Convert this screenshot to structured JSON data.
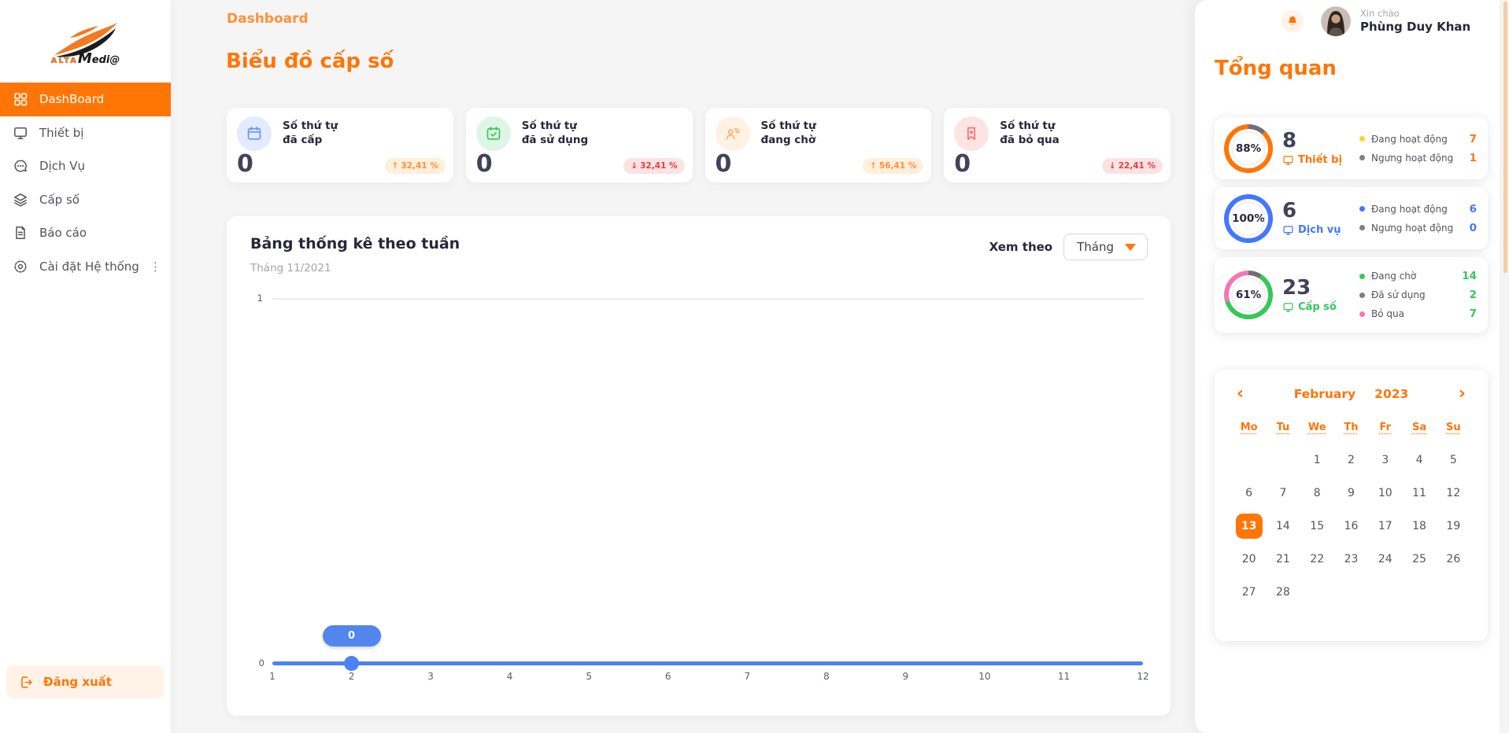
{
  "colors": {
    "primary_orange": "#FF7506",
    "breadcrumb_orange": "#FF9138",
    "accent_blue": "#4277FF",
    "accent_green": "#35C75A",
    "accent_pink": "#F178B6",
    "legend_yellow": "#FFD130",
    "legend_gray": "#7E7D88",
    "chart_line_blue": "#4B82F4",
    "badge_up": "#FF9138",
    "badge_down": "#E73F3F"
  },
  "sidebar": {
    "logo": {
      "line1": "ALTA",
      "line2": "Medi@"
    },
    "items": [
      {
        "label": "DashBoard",
        "icon": "dashboard-icon",
        "active": true
      },
      {
        "label": "Thiết bị",
        "icon": "monitor-icon",
        "active": false
      },
      {
        "label": "Dịch Vụ",
        "icon": "chat-icon",
        "active": false
      },
      {
        "label": "Cấp số",
        "icon": "layers-icon",
        "active": false
      },
      {
        "label": "Báo cáo",
        "icon": "report-icon",
        "active": false
      },
      {
        "label": "Cài đặt Hệ thống",
        "icon": "settings-icon",
        "active": false,
        "has_more_menu": true
      }
    ],
    "logout_label": "Đăng xuất"
  },
  "header": {
    "breadcrumb": "Dashboard",
    "title": "Biểu đồ cấp số"
  },
  "stat_cards": [
    {
      "line1": "Số thứ tự",
      "line2": "đã cấp",
      "value": "0",
      "direction": "up",
      "arrow": "↑",
      "change": "32,41 %",
      "icon": "calendar-icon"
    },
    {
      "line1": "Số thứ tự",
      "line2": "đã sử dụng",
      "value": "0",
      "direction": "down",
      "arrow": "↓",
      "change": "32,41 %",
      "icon": "calendar-check-icon"
    },
    {
      "line1": "Số thứ tự",
      "line2": "đang chờ",
      "value": "0",
      "direction": "up",
      "arrow": "↑",
      "change": "56,41 %",
      "icon": "waiting-call-icon"
    },
    {
      "line1": "Số thứ tự",
      "line2": "đã bỏ qua",
      "value": "0",
      "direction": "down",
      "arrow": "↓",
      "change": "22,41 %",
      "icon": "bookmark-star-icon"
    }
  ],
  "chart": {
    "title": "Bảng thống kê theo tuần",
    "subtitle": "Tháng 11/2021",
    "view_by_label": "Xem theo",
    "view_by_value": "Tháng",
    "chart_data": {
      "type": "line",
      "x": [
        1,
        2,
        3,
        4,
        5,
        6,
        7,
        8,
        9,
        10,
        11,
        12
      ],
      "series": [
        {
          "name": "Số thứ tự",
          "values": [
            0,
            0,
            0,
            0,
            0,
            0,
            0,
            0,
            0,
            0,
            0,
            0
          ]
        }
      ],
      "ylim": [
        0,
        1
      ],
      "y_ticks": [
        "1",
        "0"
      ],
      "highlight": {
        "x": 2,
        "label": "0"
      },
      "grid": true,
      "line_color": "#4B82F4"
    }
  },
  "user": {
    "greeting": "Xin chào",
    "name": "Phùng Duy Khan"
  },
  "overview": {
    "title": "Tổng quan",
    "cards": [
      {
        "percent": "88%",
        "value": "8",
        "label": "Thiết bị",
        "accent": "#FF7506",
        "ring_segments": [
          {
            "color": "#7E7D88",
            "pct": 12
          },
          {
            "color": "#FF7506",
            "pct": 88
          }
        ],
        "legend": [
          {
            "dot_color": "#FFD130",
            "label": "Đang hoạt động",
            "value": "7"
          },
          {
            "dot_color": "#7E7D88",
            "label": "Ngưng hoạt động",
            "value": "1"
          }
        ]
      },
      {
        "percent": "100%",
        "value": "6",
        "label": "Dịch vụ",
        "accent": "#4277FF",
        "ring_segments": [
          {
            "color": "#4277FF",
            "pct": 100
          }
        ],
        "legend": [
          {
            "dot_color": "#4277FF",
            "label": "Đang hoạt động",
            "value": "6"
          },
          {
            "dot_color": "#7E7D88",
            "label": "Ngưng hoạt động",
            "value": "0"
          }
        ]
      },
      {
        "percent": "61%",
        "value": "23",
        "label": "Cấp số",
        "accent": "#35C75A",
        "ring_segments": [
          {
            "color": "#7E7D88",
            "pct": 9
          },
          {
            "color": "#35C75A",
            "pct": 61
          },
          {
            "color": "#F178B6",
            "pct": 30
          }
        ],
        "legend": [
          {
            "dot_color": "#35C75A",
            "label": "Đang chờ",
            "value": "14"
          },
          {
            "dot_color": "#7E7D88",
            "label": "Đã sử dụng",
            "value": "2"
          },
          {
            "dot_color": "#F178B6",
            "label": "Bỏ qua",
            "value": "7"
          }
        ]
      }
    ]
  },
  "calendar": {
    "month": "February",
    "year": "2023",
    "icons": {
      "prev": "‹",
      "next": "›"
    },
    "day_headers": [
      "Mo",
      "Tu",
      "We",
      "Th",
      "Fr",
      "Sa",
      "Su"
    ],
    "weeks": [
      [
        "",
        "",
        "1",
        "2",
        "3",
        "4",
        "5"
      ],
      [
        "6",
        "7",
        "8",
        "9",
        "10",
        "11",
        "12"
      ],
      [
        "13",
        "14",
        "15",
        "16",
        "17",
        "18",
        "19"
      ],
      [
        "20",
        "21",
        "22",
        "23",
        "24",
        "25",
        "26"
      ],
      [
        "27",
        "28",
        "",
        "",
        "",
        "",
        ""
      ]
    ],
    "selected_day": "13"
  }
}
